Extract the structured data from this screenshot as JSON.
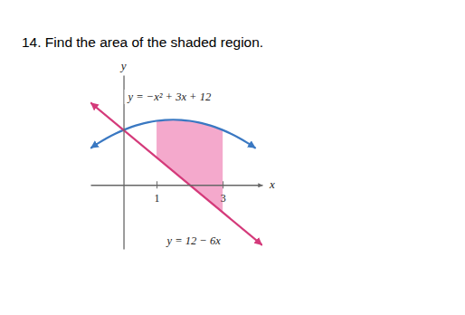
{
  "chart_data": {
    "type": "line",
    "title": "14. Find the area of the shaded region.",
    "x_label": "x",
    "y_label": "y",
    "xlim": [
      -1,
      4.2
    ],
    "ylim": [
      -14,
      24
    ],
    "xticks": [
      1,
      3
    ],
    "tick_labels": "x",
    "grid": false,
    "series": [
      {
        "name": "y = −x² + 3x + 12",
        "type": "line",
        "color": "#3a78c2",
        "marker": "arrow",
        "x": [
          -1,
          -0.75,
          -0.5,
          -0.25,
          0,
          0.25,
          0.5,
          0.75,
          1,
          1.25,
          1.5,
          1.75,
          2,
          2.25,
          2.5,
          2.75,
          3,
          3.25,
          3.5,
          3.75,
          4
        ],
        "values": [
          8,
          9.1875,
          10.25,
          11.1875,
          12,
          12.6875,
          13.25,
          13.6875,
          14,
          14.1875,
          14.25,
          14.1875,
          14,
          13.6875,
          13.25,
          12.6875,
          12,
          11.1875,
          10.25,
          9.1875,
          8
        ]
      },
      {
        "name": "y = 12 − 6x",
        "type": "line",
        "color": "#d43a7a",
        "marker": "arrow",
        "x": [
          -1,
          4.2
        ],
        "values": [
          18,
          -13.2
        ]
      },
      {
        "type": "area",
        "color": "#f4a9cc",
        "x": [
          1,
          1.25,
          1.5,
          1.75,
          2,
          2.25,
          2.5,
          2.75,
          3
        ],
        "values": [
          14,
          14.1875,
          14.25,
          14.1875,
          14,
          13.6875,
          13.25,
          12.6875,
          12
        ],
        "lower": [
          6,
          4.5,
          3,
          1.5,
          0,
          -1.5,
          -3,
          -4.5,
          -6
        ]
      }
    ]
  }
}
